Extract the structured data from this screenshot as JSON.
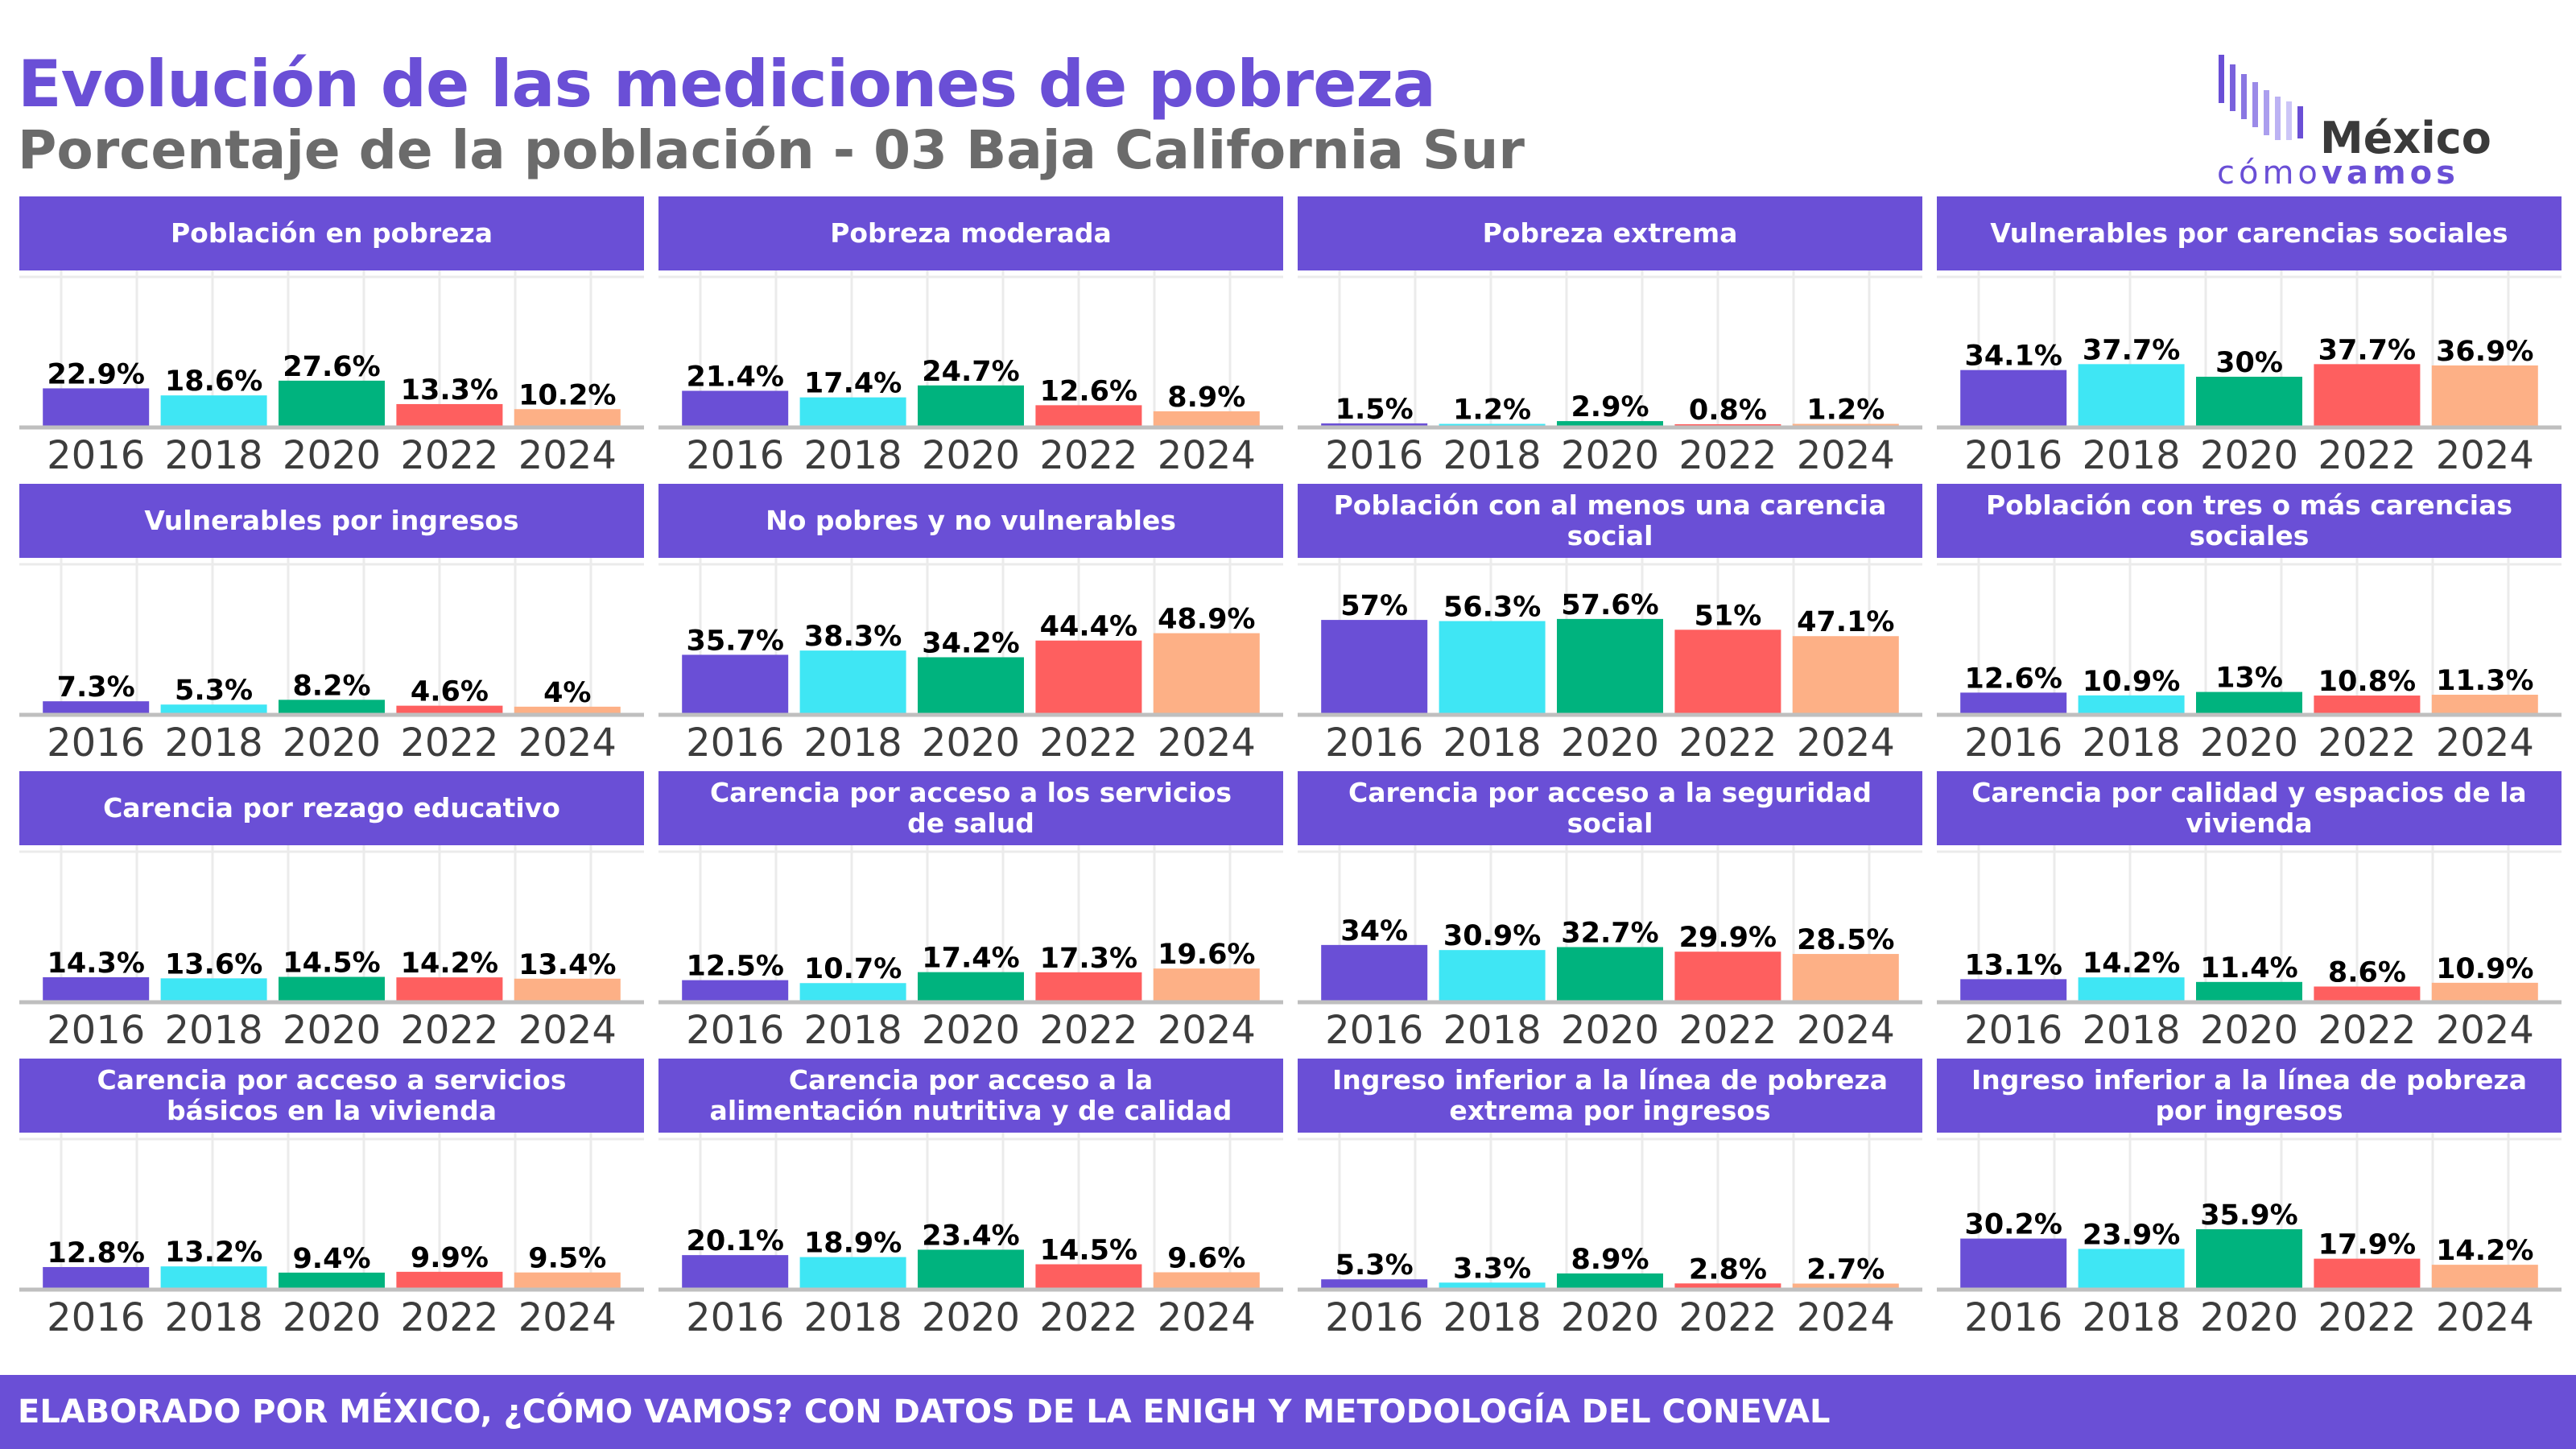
{
  "header": {
    "title": "Evolución de las mediciones de pobreza",
    "subtitle": "Porcentaje de la población - 03 Baja California Sur"
  },
  "logo": {
    "name": "México",
    "tagline_light": "cómo",
    "tagline_bold": "vamos"
  },
  "footer": {
    "text": "ELABORADO POR MÉXICO, ¿CÓMO VAMOS? CON DATOS DE LA ENIGH Y METODOLOGÍA DEL CONEVAL"
  },
  "colors": {
    "accent": "#6a4fd6",
    "series": [
      "#6a4fd6",
      "#3fe6f4",
      "#00b37e",
      "#fe5f5f",
      "#fdb086"
    ],
    "axis": "#bfbfbf",
    "grid": "#ebebeb"
  },
  "chart_data": [
    {
      "type": "bar",
      "title": "Población en pobreza",
      "categories": [
        "2016",
        "2018",
        "2020",
        "2022",
        "2024"
      ],
      "values": [
        22.9,
        18.6,
        27.6,
        13.3,
        10.2
      ],
      "labels": [
        "22.9%",
        "18.6%",
        "27.6%",
        "13.3%",
        "10.2%"
      ],
      "ylim": [
        0,
        60
      ]
    },
    {
      "type": "bar",
      "title": "Pobreza moderada",
      "categories": [
        "2016",
        "2018",
        "2020",
        "2022",
        "2024"
      ],
      "values": [
        21.4,
        17.4,
        24.7,
        12.6,
        8.9
      ],
      "labels": [
        "21.4%",
        "17.4%",
        "24.7%",
        "12.6%",
        "8.9%"
      ],
      "ylim": [
        0,
        60
      ]
    },
    {
      "type": "bar",
      "title": "Pobreza extrema",
      "categories": [
        "2016",
        "2018",
        "2020",
        "2022",
        "2024"
      ],
      "values": [
        1.5,
        1.2,
        2.9,
        0.8,
        1.2
      ],
      "labels": [
        "1.5%",
        "1.2%",
        "2.9%",
        "0.8%",
        "1.2%"
      ],
      "ylim": [
        0,
        60
      ]
    },
    {
      "type": "bar",
      "title": "Vulnerables por carencias sociales",
      "categories": [
        "2016",
        "2018",
        "2020",
        "2022",
        "2024"
      ],
      "values": [
        34.1,
        37.7,
        30,
        37.7,
        36.9
      ],
      "labels": [
        "34.1%",
        "37.7%",
        "30%",
        "37.7%",
        "36.9%"
      ],
      "ylim": [
        0,
        60
      ]
    },
    {
      "type": "bar",
      "title": "Vulnerables por ingresos",
      "categories": [
        "2016",
        "2018",
        "2020",
        "2022",
        "2024"
      ],
      "values": [
        7.3,
        5.3,
        8.2,
        4.6,
        4
      ],
      "labels": [
        "7.3%",
        "5.3%",
        "8.2%",
        "4.6%",
        "4%"
      ],
      "ylim": [
        0,
        60
      ]
    },
    {
      "type": "bar",
      "title": "No pobres y no vulnerables",
      "categories": [
        "2016",
        "2018",
        "2020",
        "2022",
        "2024"
      ],
      "values": [
        35.7,
        38.3,
        34.2,
        44.4,
        48.9
      ],
      "labels": [
        "35.7%",
        "38.3%",
        "34.2%",
        "44.4%",
        "48.9%"
      ],
      "ylim": [
        0,
        60
      ]
    },
    {
      "type": "bar",
      "title": "Población con al menos una carencia social",
      "categories": [
        "2016",
        "2018",
        "2020",
        "2022",
        "2024"
      ],
      "values": [
        57,
        56.3,
        57.6,
        51,
        47.1
      ],
      "labels": [
        "57%",
        "56.3%",
        "57.6%",
        "51%",
        "47.1%"
      ],
      "ylim": [
        0,
        60
      ]
    },
    {
      "type": "bar",
      "title": "Población con tres o más carencias sociales",
      "categories": [
        "2016",
        "2018",
        "2020",
        "2022",
        "2024"
      ],
      "values": [
        12.6,
        10.9,
        13,
        10.8,
        11.3
      ],
      "labels": [
        "12.6%",
        "10.9%",
        "13%",
        "10.8%",
        "11.3%"
      ],
      "ylim": [
        0,
        60
      ]
    },
    {
      "type": "bar",
      "title": "Carencia por rezago educativo",
      "categories": [
        "2016",
        "2018",
        "2020",
        "2022",
        "2024"
      ],
      "values": [
        14.3,
        13.6,
        14.5,
        14.2,
        13.4
      ],
      "labels": [
        "14.3%",
        "13.6%",
        "14.5%",
        "14.2%",
        "13.4%"
      ],
      "ylim": [
        0,
        60
      ]
    },
    {
      "type": "bar",
      "title": "Carencia por acceso a los servicios de salud",
      "categories": [
        "2016",
        "2018",
        "2020",
        "2022",
        "2024"
      ],
      "values": [
        12.5,
        10.7,
        17.4,
        17.3,
        19.6
      ],
      "labels": [
        "12.5%",
        "10.7%",
        "17.4%",
        "17.3%",
        "19.6%"
      ],
      "ylim": [
        0,
        60
      ]
    },
    {
      "type": "bar",
      "title": "Carencia por acceso a la seguridad social",
      "categories": [
        "2016",
        "2018",
        "2020",
        "2022",
        "2024"
      ],
      "values": [
        34,
        30.9,
        32.7,
        29.9,
        28.5
      ],
      "labels": [
        "34%",
        "30.9%",
        "32.7%",
        "29.9%",
        "28.5%"
      ],
      "ylim": [
        0,
        60
      ]
    },
    {
      "type": "bar",
      "title": "Carencia por calidad y espacios de la vivienda",
      "categories": [
        "2016",
        "2018",
        "2020",
        "2022",
        "2024"
      ],
      "values": [
        13.1,
        14.2,
        11.4,
        8.6,
        10.9
      ],
      "labels": [
        "13.1%",
        "14.2%",
        "11.4%",
        "8.6%",
        "10.9%"
      ],
      "ylim": [
        0,
        60
      ]
    },
    {
      "type": "bar",
      "title": "Carencia por acceso a servicios básicos en la vivienda",
      "categories": [
        "2016",
        "2018",
        "2020",
        "2022",
        "2024"
      ],
      "values": [
        12.8,
        13.2,
        9.4,
        9.9,
        9.5
      ],
      "labels": [
        "12.8%",
        "13.2%",
        "9.4%",
        "9.9%",
        "9.5%"
      ],
      "ylim": [
        0,
        60
      ]
    },
    {
      "type": "bar",
      "title": "Carencia por acceso a la alimentación nutritiva y de calidad",
      "categories": [
        "2016",
        "2018",
        "2020",
        "2022",
        "2024"
      ],
      "values": [
        20.1,
        18.9,
        23.4,
        14.5,
        9.6
      ],
      "labels": [
        "20.1%",
        "18.9%",
        "23.4%",
        "14.5%",
        "9.6%"
      ],
      "ylim": [
        0,
        60
      ]
    },
    {
      "type": "bar",
      "title": "Ingreso inferior a la línea de pobreza extrema por ingresos",
      "categories": [
        "2016",
        "2018",
        "2020",
        "2022",
        "2024"
      ],
      "values": [
        5.3,
        3.3,
        8.9,
        2.8,
        2.7
      ],
      "labels": [
        "5.3%",
        "3.3%",
        "8.9%",
        "2.8%",
        "2.7%"
      ],
      "ylim": [
        0,
        60
      ]
    },
    {
      "type": "bar",
      "title": "Ingreso inferior a la línea de pobreza por ingresos",
      "categories": [
        "2016",
        "2018",
        "2020",
        "2022",
        "2024"
      ],
      "values": [
        30.2,
        23.9,
        35.9,
        17.9,
        14.2
      ],
      "labels": [
        "30.2%",
        "23.9%",
        "35.9%",
        "17.9%",
        "14.2%"
      ],
      "ylim": [
        0,
        60
      ]
    }
  ]
}
